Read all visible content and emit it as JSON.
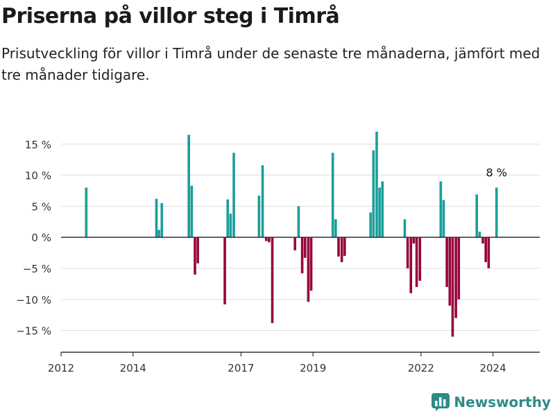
{
  "title": "Priserna på villor steg i Timrå",
  "subtitle": "Prisutveckling för villor i Timrå under de senaste tre månaderna, jämfört med tre månader tidigare.",
  "brand": "Newsworthy",
  "colors": {
    "positive": "#1a9e9a",
    "negative": "#97053d",
    "grid": "#dddddd",
    "axis": "#333333",
    "brand": "#2e8b86"
  },
  "chart_data": {
    "type": "bar",
    "ylim": [
      -18.5,
      19
    ],
    "xlim": [
      2012.0,
      2025.3
    ],
    "yticks": [
      15,
      10,
      5,
      0,
      -5,
      -10,
      -15
    ],
    "ytick_labels": [
      "15 %",
      "10 %",
      "5 %",
      "0 %",
      "−5 %",
      "−10 %",
      "−15 %"
    ],
    "xticks": [
      2012,
      2014,
      2017,
      2019,
      2022,
      2024
    ],
    "xtick_labels": [
      "2012",
      "2014",
      "2017",
      "2019",
      "2022",
      "2024"
    ],
    "grid": true,
    "annotation": {
      "text": "8 %",
      "x": 2024.1,
      "y": 8
    },
    "series": [
      {
        "x": [
          2012.7,
          2014.65,
          2014.72,
          2014.8,
          2015.55,
          2015.63,
          2015.72,
          2015.8,
          2016.55,
          2016.63,
          2016.71,
          2016.8,
          2017.5,
          2017.6,
          2017.7,
          2017.78,
          2017.87,
          2018.5,
          2018.6,
          2018.7,
          2018.78,
          2018.87,
          2018.95,
          2019.55,
          2019.63,
          2019.71,
          2019.8,
          2019.88,
          2020.6,
          2020.68,
          2020.77,
          2020.85,
          2020.93,
          2021.55,
          2021.63,
          2021.72,
          2021.8,
          2021.88,
          2021.97,
          2022.55,
          2022.63,
          2022.72,
          2022.8,
          2022.88,
          2022.97,
          2023.05,
          2023.55,
          2023.63,
          2023.72,
          2023.8,
          2023.88,
          2024.1
        ],
        "values": [
          8,
          6.2,
          1.2,
          5.5,
          16.5,
          8.3,
          -6,
          -4.2,
          -10.8,
          6.1,
          3.8,
          13.6,
          6.7,
          11.6,
          -0.6,
          -0.8,
          -13.8,
          -2.1,
          5.0,
          -5.8,
          -3.3,
          -10.4,
          -8.6,
          13.6,
          2.9,
          -3.1,
          -4.0,
          -3.0,
          4.0,
          14.0,
          17.0,
          8.0,
          9.0,
          2.9,
          -5.0,
          -9.0,
          -1.0,
          -8.0,
          -7.0,
          9.0,
          6.0,
          -8.0,
          -11.0,
          -16.0,
          -13.0,
          -10.0,
          6.9,
          0.9,
          -1.0,
          -4.0,
          -5.0,
          8.0
        ]
      }
    ]
  }
}
